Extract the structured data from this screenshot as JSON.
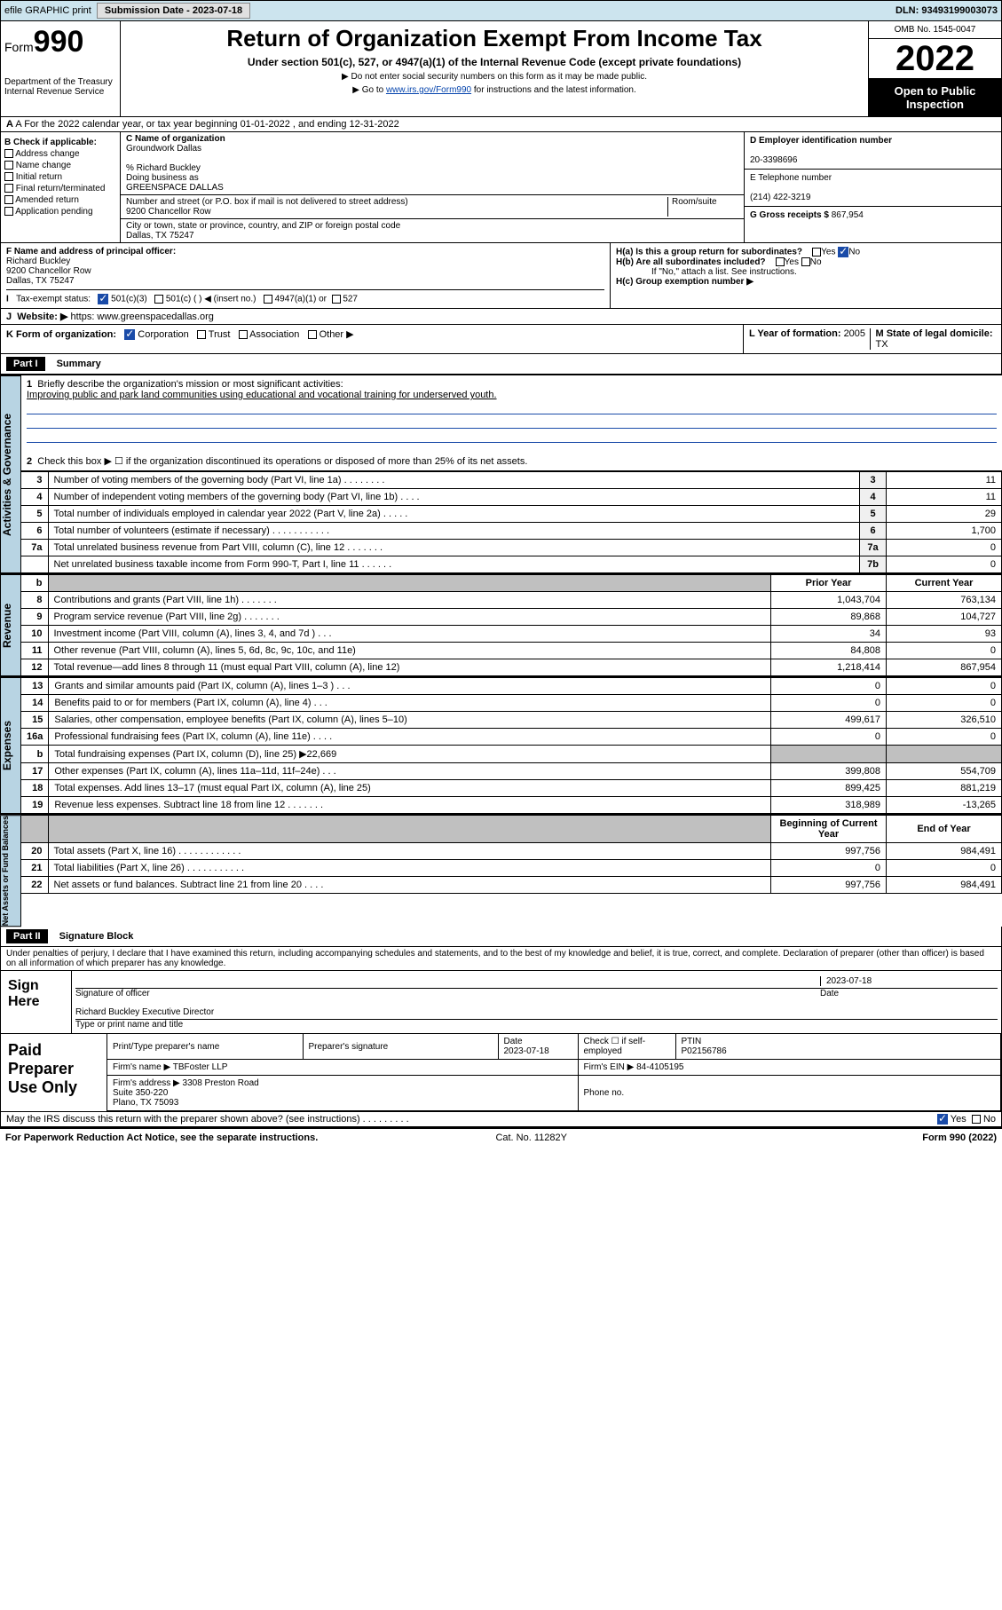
{
  "topbar": {
    "efile": "efile GRAPHIC print",
    "subdate_label": "Submission Date - ",
    "subdate": "2023-07-18",
    "dln": "DLN: 93493199003073"
  },
  "header": {
    "form_word": "Form",
    "form_num": "990",
    "dept": "Department of the Treasury",
    "irs": "Internal Revenue Service",
    "title": "Return of Organization Exempt From Income Tax",
    "sub": "Under section 501(c), 527, or 4947(a)(1) of the Internal Revenue Code (except private foundations)",
    "small1": "▶ Do not enter social security numbers on this form as it may be made public.",
    "small2a": "▶ Go to ",
    "small2_link": "www.irs.gov/Form990",
    "small2b": " for instructions and the latest information.",
    "omb": "OMB No. 1545-0047",
    "year": "2022",
    "inspect": "Open to Public Inspection"
  },
  "rowA": "A For the 2022 calendar year, or tax year beginning 01-01-2022     , and ending 12-31-2022",
  "colB": {
    "hdr": "B Check if applicable:",
    "items": [
      "Address change",
      "Name change",
      "Initial return",
      "Final return/terminated",
      "Amended return",
      "Application pending"
    ]
  },
  "colC": {
    "c_label": "C Name of organization",
    "org": "Groundwork Dallas",
    "pct": "% Richard Buckley",
    "dba_label": "Doing business as",
    "dba": "GREENSPACE DALLAS",
    "street_label": "Number and street (or P.O. box if mail is not delivered to street address)",
    "room_label": "Room/suite",
    "street": "9200 Chancellor Row",
    "city_label": "City or town, state or province, country, and ZIP or foreign postal code",
    "city": "Dallas, TX  75247"
  },
  "colDE": {
    "d_label": "D Employer identification number",
    "ein": "20-3398696",
    "e_label": "E Telephone number",
    "phone": "(214) 422-3219",
    "g_label": "G Gross receipts $ ",
    "gross": "867,954"
  },
  "rowF": {
    "f_label": "F Name and address of principal officer:",
    "name": "Richard Buckley",
    "addr1": "9200 Chancellor Row",
    "addr2": "Dallas, TX  75247",
    "ha": "H(a)  Is this a group return for subordinates?",
    "hb": "H(b)  Are all subordinates included?",
    "hb_note": "If \"No,\" attach a list. See instructions.",
    "hc": "H(c)  Group exemption number ▶",
    "yes": "Yes",
    "no": "No"
  },
  "rowI": {
    "label": "Tax-exempt status:",
    "o1": "501(c)(3)",
    "o2": "501(c) (   ) ◀ (insert no.)",
    "o3": "4947(a)(1) or",
    "o4": "527"
  },
  "rowJ": {
    "label": "Website: ▶",
    "url": "https: www.greenspacedallas.org"
  },
  "rowK": {
    "label": "K Form of organization:",
    "o1": "Corporation",
    "o2": "Trust",
    "o3": "Association",
    "o4": "Other ▶",
    "l_label": "L Year of formation: ",
    "l_val": "2005",
    "m_label": "M State of legal domicile: ",
    "m_val": "TX"
  },
  "partI": {
    "hdr": "Part I",
    "title": "Summary"
  },
  "summary": {
    "l1_label": "Briefly describe the organization's mission or most significant activities:",
    "l1_text": "Improving public and park land communities using educational and vocational training for underserved youth.",
    "l2": "Check this box ▶ ☐  if the organization discontinued its operations or disposed of more than 25% of its net assets.",
    "sections": {
      "gov": "Activities & Governance",
      "rev": "Revenue",
      "exp": "Expenses",
      "net": "Net Assets or Fund Balances"
    },
    "hdr_prior": "Prior Year",
    "hdr_curr": "Current Year",
    "hdr_beg": "Beginning of Current Year",
    "hdr_end": "End of Year",
    "rows_gov": [
      {
        "n": "3",
        "t": "Number of voting members of the governing body (Part VI, line 1a)  .    .    .    .    .    .    .    .",
        "b": "3",
        "v": "11"
      },
      {
        "n": "4",
        "t": "Number of independent voting members of the governing body (Part VI, line 1b)  .    .    .    .",
        "b": "4",
        "v": "11"
      },
      {
        "n": "5",
        "t": "Total number of individuals employed in calendar year 2022 (Part V, line 2a)  .    .    .    .    .",
        "b": "5",
        "v": "29"
      },
      {
        "n": "6",
        "t": "Total number of volunteers (estimate if necessary)  .    .    .    .    .    .    .    .    .    .    .",
        "b": "6",
        "v": "1,700"
      },
      {
        "n": "7a",
        "t": "Total unrelated business revenue from Part VIII, column (C), line 12  .    .    .    .    .    .    .",
        "b": "7a",
        "v": "0"
      },
      {
        "n": "",
        "t": "Net unrelated business taxable income from Form 990-T, Part I, line 11  .    .    .    .    .    .",
        "b": "7b",
        "v": "0"
      }
    ],
    "rows_rev": [
      {
        "n": "8",
        "t": "Contributions and grants (Part VIII, line 1h)  .    .    .    .    .    .    .",
        "p": "1,043,704",
        "c": "763,134"
      },
      {
        "n": "9",
        "t": "Program service revenue (Part VIII, line 2g)  .    .    .    .    .    .    .",
        "p": "89,868",
        "c": "104,727"
      },
      {
        "n": "10",
        "t": "Investment income (Part VIII, column (A), lines 3, 4, and 7d )  .    .    .",
        "p": "34",
        "c": "93"
      },
      {
        "n": "11",
        "t": "Other revenue (Part VIII, column (A), lines 5, 6d, 8c, 9c, 10c, and 11e)",
        "p": "84,808",
        "c": "0"
      },
      {
        "n": "12",
        "t": "Total revenue—add lines 8 through 11 (must equal Part VIII, column (A), line 12)",
        "p": "1,218,414",
        "c": "867,954"
      }
    ],
    "rows_exp": [
      {
        "n": "13",
        "t": "Grants and similar amounts paid (Part IX, column (A), lines 1–3 )  .    .    .",
        "p": "0",
        "c": "0"
      },
      {
        "n": "14",
        "t": "Benefits paid to or for members (Part IX, column (A), line 4)  .    .    .",
        "p": "0",
        "c": "0"
      },
      {
        "n": "15",
        "t": "Salaries, other compensation, employee benefits (Part IX, column (A), lines 5–10)",
        "p": "499,617",
        "c": "326,510"
      },
      {
        "n": "16a",
        "t": "Professional fundraising fees (Part IX, column (A), line 11e)  .    .    .    .",
        "p": "0",
        "c": "0"
      },
      {
        "n": "b",
        "t": "Total fundraising expenses (Part IX, column (D), line 25) ▶22,669",
        "p": "",
        "c": "",
        "grey": true
      },
      {
        "n": "17",
        "t": "Other expenses (Part IX, column (A), lines 11a–11d, 11f–24e)  .    .    .",
        "p": "399,808",
        "c": "554,709"
      },
      {
        "n": "18",
        "t": "Total expenses. Add lines 13–17 (must equal Part IX, column (A), line 25)",
        "p": "899,425",
        "c": "881,219"
      },
      {
        "n": "19",
        "t": "Revenue less expenses. Subtract line 18 from line 12  .    .    .    .    .    .    .",
        "p": "318,989",
        "c": "-13,265"
      }
    ],
    "rows_net": [
      {
        "n": "20",
        "t": "Total assets (Part X, line 16)  .    .    .    .    .    .    .    .    .    .    .    .",
        "p": "997,756",
        "c": "984,491"
      },
      {
        "n": "21",
        "t": "Total liabilities (Part X, line 26)  .    .    .    .    .    .    .    .    .    .    .",
        "p": "0",
        "c": "0"
      },
      {
        "n": "22",
        "t": "Net assets or fund balances. Subtract line 21 from line 20  .    .    .    .",
        "p": "997,756",
        "c": "984,491"
      }
    ]
  },
  "partII": {
    "hdr": "Part II",
    "title": "Signature Block"
  },
  "penalties": "Under penalties of perjury, I declare that I have examined this return, including accompanying schedules and statements, and to the best of my knowledge and belief, it is true, correct, and complete. Declaration of preparer (other than officer) is based on all information of which preparer has any knowledge.",
  "sign": {
    "here": "Sign Here",
    "sig_officer": "Signature of officer",
    "date": "Date",
    "date_val": "2023-07-18",
    "officer": "Richard Buckley  Executive Director",
    "type_name": "Type or print name and title"
  },
  "paid": {
    "label": "Paid Preparer Use Only",
    "print_name": "Print/Type preparer's name",
    "sig": "Preparer's signature",
    "date": "Date",
    "date_val": "2023-07-18",
    "check": "Check ☐ if self-employed",
    "ptin_label": "PTIN",
    "ptin": "P02156786",
    "firm_name_label": "Firm's name      ▶ ",
    "firm_name": "TBFoster LLP",
    "firm_ein_label": "Firm's EIN ▶ ",
    "firm_ein": "84-4105195",
    "firm_addr_label": "Firm's address ▶ ",
    "firm_addr": "3308 Preston Road\nSuite 350-220\nPlano, TX  75093",
    "phone": "Phone no."
  },
  "footer": {
    "discuss": "May the IRS discuss this return with the preparer shown above? (see instructions)  .    .    .    .    .    .    .    .    .",
    "yes": "Yes",
    "no": "No",
    "pra": "For Paperwork Reduction Act Notice, see the separate instructions.",
    "cat": "Cat. No. 11282Y",
    "form": "Form 990 (2022)"
  }
}
